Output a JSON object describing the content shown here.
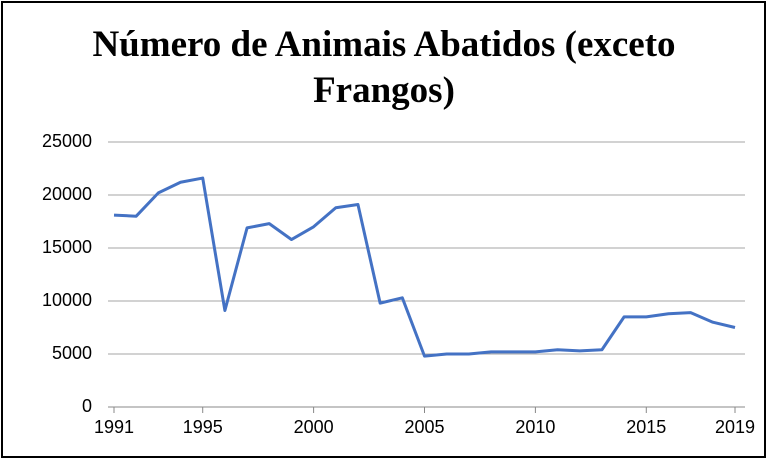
{
  "chart_data": {
    "type": "line",
    "title": "Número de Animais Abatidos (exceto Frangos)",
    "x": [
      1991,
      1992,
      1993,
      1994,
      1995,
      1996,
      1997,
      1998,
      1999,
      2000,
      2001,
      2002,
      2003,
      2004,
      2005,
      2006,
      2007,
      2008,
      2009,
      2010,
      2011,
      2012,
      2013,
      2014,
      2015,
      2016,
      2017,
      2018,
      2019
    ],
    "series": [
      {
        "name": "Número de Animais Abatidos",
        "color": "#4472c4",
        "values": [
          18100,
          18000,
          20200,
          21200,
          21600,
          9100,
          16900,
          17300,
          15800,
          17000,
          18800,
          19100,
          9800,
          10300,
          4800,
          5000,
          5000,
          5200,
          5200,
          5200,
          5400,
          5300,
          5400,
          8500,
          8500,
          8800,
          8900,
          8000,
          7500
        ]
      }
    ],
    "xlim": [
      1991,
      2019
    ],
    "xticks": [
      1991,
      1995,
      2000,
      2005,
      2010,
      2015,
      2019
    ],
    "ylim": [
      0,
      25000
    ],
    "yticks": [
      0,
      5000,
      10000,
      15000,
      20000,
      25000
    ],
    "grid": true
  }
}
